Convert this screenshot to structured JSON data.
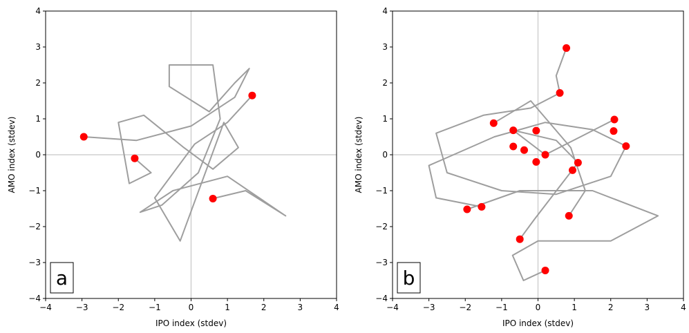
{
  "chart_data": [
    {
      "type": "scatter",
      "annotation": "a",
      "xlabel": "IPO index (stdev)",
      "ylabel": "AMO index (stdev)",
      "xlim": [
        -4,
        4
      ],
      "ylim": [
        -4,
        4
      ],
      "xticks": [
        {
          "value": -4,
          "label": "−4"
        },
        {
          "value": -3,
          "label": "−3"
        },
        {
          "value": -2,
          "label": "−2"
        },
        {
          "value": -1,
          "label": "−1"
        },
        0,
        1,
        2,
        3,
        4
      ],
      "yticks": [
        {
          "value": -4,
          "label": "−4"
        },
        {
          "value": -3,
          "label": "−3"
        },
        {
          "value": -2,
          "label": "−2"
        },
        {
          "value": -1,
          "label": "−1"
        },
        0,
        1,
        2,
        3,
        4
      ],
      "zero_lines": true,
      "trajectory": {
        "color": "#9e9e9e",
        "x": [
          -2.95,
          -1.5,
          0.0,
          1.2,
          1.6,
          1.2,
          0.5,
          -0.6,
          -0.6,
          0.6,
          0.8,
          0.2,
          -0.8,
          -1.4,
          -0.5,
          1.0,
          2.6,
          1.5,
          0.6,
          null,
          -1.55,
          -1.1,
          -1.7,
          -2.0,
          -1.3,
          -0.2,
          0.6,
          1.3,
          0.9,
          -0.3,
          -1.0,
          0.1,
          1.0,
          1.68
        ],
        "y": [
          0.5,
          0.4,
          0.8,
          1.6,
          2.4,
          2.0,
          1.2,
          1.9,
          2.5,
          2.5,
          1.0,
          -0.5,
          -1.4,
          -1.6,
          -1.0,
          -0.6,
          -1.7,
          -1.0,
          -1.22,
          null,
          -0.1,
          -0.5,
          -0.8,
          0.9,
          1.1,
          0.2,
          -0.4,
          0.2,
          0.9,
          -2.4,
          -1.2,
          0.3,
          0.9,
          1.65
        ]
      },
      "points": {
        "color": "#ff0000",
        "x": [
          -2.95,
          -1.55,
          0.6,
          1.68
        ],
        "y": [
          0.5,
          -0.1,
          -1.22,
          1.65
        ]
      }
    },
    {
      "type": "scatter",
      "annotation": "b",
      "xlabel": "IPO index (stdev)",
      "ylabel": "AMO index (stdev)",
      "xlim": [
        -4,
        4
      ],
      "ylim": [
        -4,
        4
      ],
      "xticks": [
        {
          "value": -4,
          "label": "−4"
        },
        {
          "value": -3,
          "label": "−3"
        },
        {
          "value": -2,
          "label": "−2"
        },
        {
          "value": -1,
          "label": "−1"
        },
        0,
        1,
        2,
        3,
        4
      ],
      "yticks": [
        {
          "value": -4,
          "label": "−4"
        },
        {
          "value": -3,
          "label": "−3"
        },
        {
          "value": -2,
          "label": "−2"
        },
        {
          "value": -1,
          "label": "−1"
        },
        0,
        1,
        2,
        3,
        4
      ],
      "zero_lines": true,
      "trajectory": {
        "color": "#9e9e9e",
        "x": [
          0.78,
          0.5,
          0.6,
          -0.2,
          -1.5,
          -2.8,
          -2.5,
          -1.0,
          0.5,
          2.0,
          2.42,
          1.5,
          0.2,
          -1.2,
          -3.0,
          -2.8,
          -1.55,
          null,
          -1.95,
          -0.5,
          1.5,
          3.3,
          2.0,
          0.0,
          -0.7,
          -0.4,
          0.2,
          null,
          0.85,
          1.3,
          0.9,
          -0.2,
          -1.22,
          null,
          -0.5,
          -0.1,
          1.1,
          0.5,
          -0.68,
          0.2,
          2.1
        ],
        "y": [
          2.97,
          2.2,
          1.72,
          1.3,
          1.1,
          0.6,
          -0.5,
          -1.0,
          -1.1,
          -0.6,
          0.24,
          0.7,
          0.9,
          0.5,
          -0.3,
          -1.2,
          -1.45,
          null,
          -1.52,
          -1.0,
          -1.0,
          -1.7,
          -2.4,
          -2.4,
          -2.8,
          -3.5,
          -3.22,
          null,
          -1.7,
          -1.0,
          0.2,
          1.5,
          0.88,
          null,
          -2.35,
          -1.8,
          -0.22,
          0.4,
          0.68,
          0.0,
          0.98
        ]
      },
      "points": {
        "color": "#ff0000",
        "x": [
          0.78,
          0.6,
          -1.22,
          -0.68,
          -0.05,
          2.1,
          2.08,
          2.42,
          -0.68,
          -0.38,
          0.2,
          -0.05,
          1.1,
          0.95,
          -1.95,
          -1.55,
          0.85,
          -0.5,
          0.2
        ],
        "y": [
          2.97,
          1.72,
          0.88,
          0.68,
          0.67,
          0.98,
          0.66,
          0.24,
          0.23,
          0.13,
          0.0,
          -0.2,
          -0.22,
          -0.43,
          -1.52,
          -1.45,
          -1.7,
          -2.35,
          -3.22
        ]
      }
    }
  ]
}
